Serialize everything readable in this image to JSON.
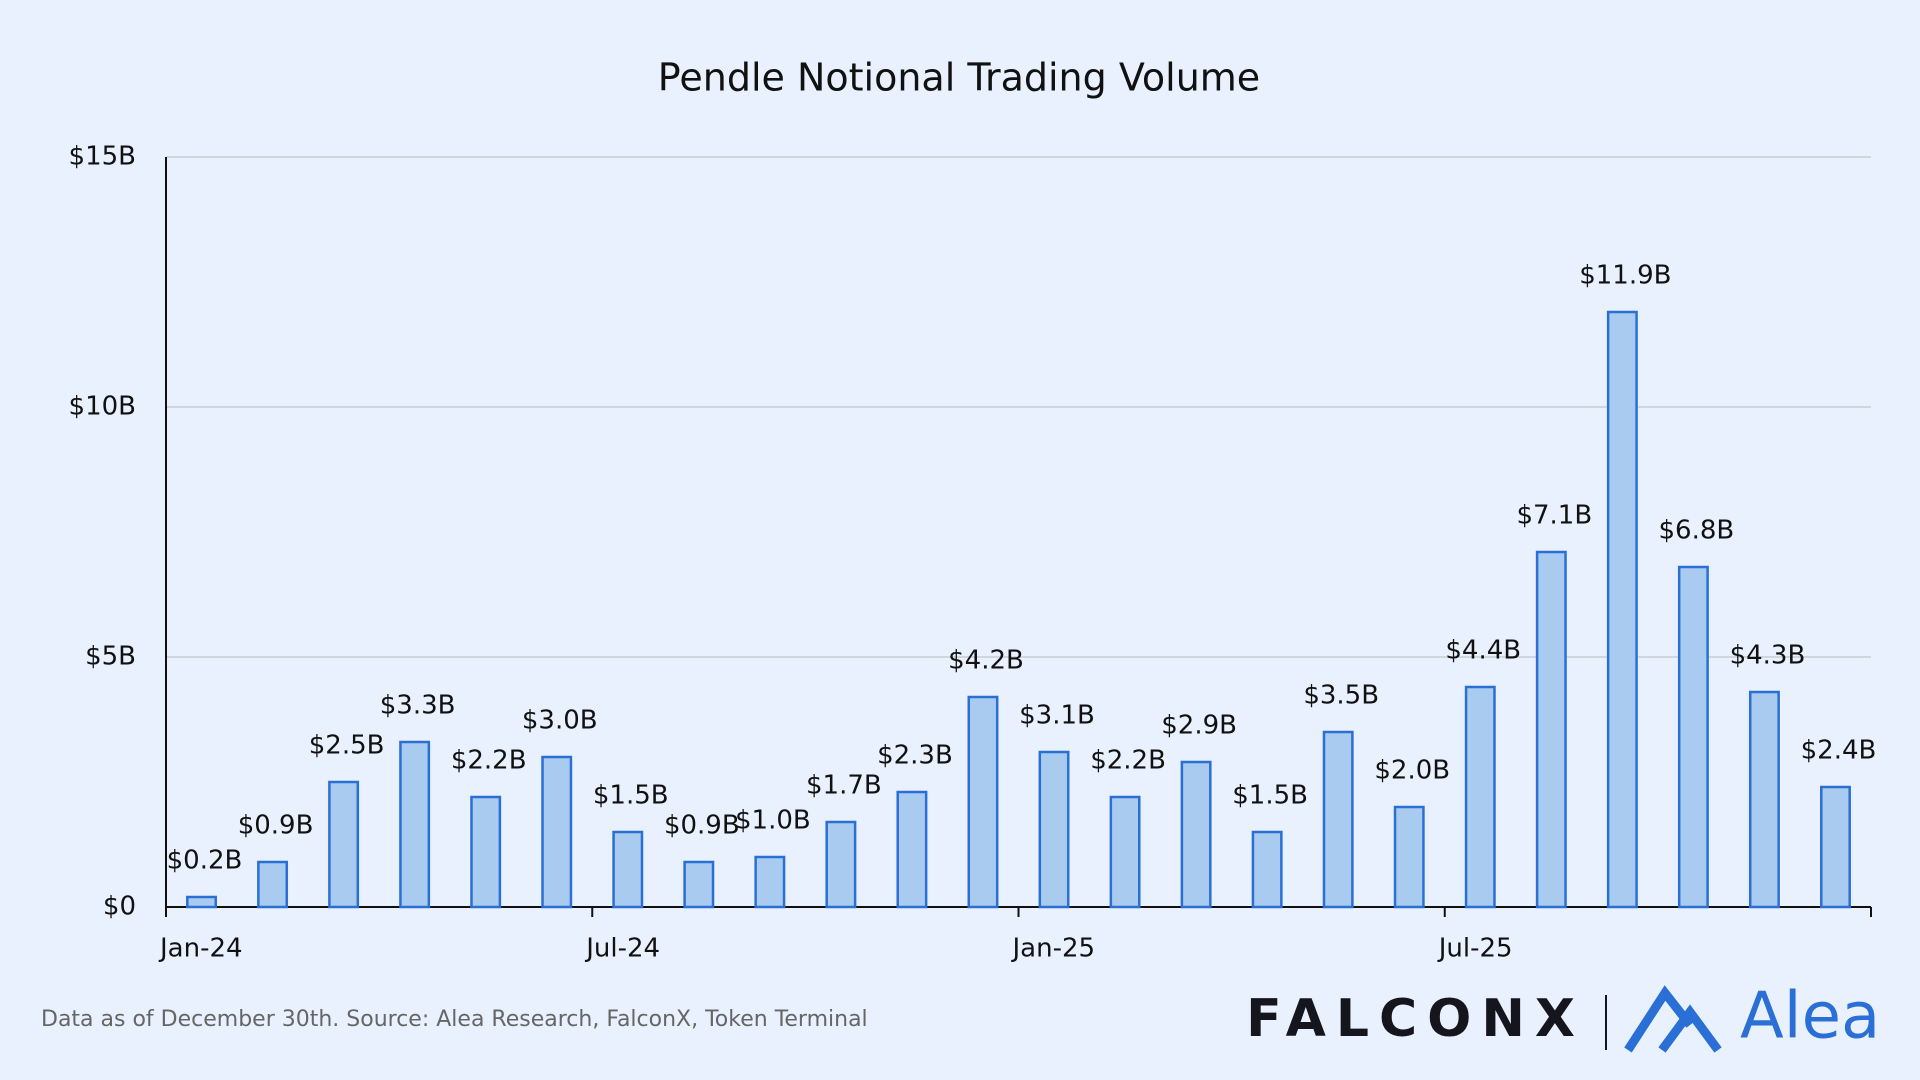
{
  "chart_data": {
    "type": "bar",
    "title": "Pendle Notional Trading Volume",
    "categories": [
      "Jan-24",
      null,
      null,
      null,
      null,
      null,
      "Jul-24",
      null,
      null,
      null,
      null,
      null,
      "Jan-25",
      null,
      null,
      null,
      null,
      null,
      "Jul-25",
      null,
      null,
      null,
      null,
      null
    ],
    "values": [
      0.2,
      0.9,
      2.5,
      3.3,
      2.2,
      3.0,
      1.5,
      0.9,
      1.0,
      1.7,
      2.3,
      4.2,
      3.1,
      2.2,
      2.9,
      1.5,
      3.5,
      2.0,
      4.4,
      7.1,
      11.9,
      6.8,
      4.3,
      2.4
    ],
    "value_labels": [
      "$0.2B",
      "$0.9B",
      "$2.5B",
      "$3.3B",
      "$2.2B",
      "$3.0B",
      "$1.5B",
      "$0.9B",
      "$1.0B",
      "$1.7B",
      "$2.3B",
      "$4.2B",
      "$3.1B",
      "$2.2B",
      "$2.9B",
      "$1.5B",
      "$3.5B",
      "$2.0B",
      "$4.4B",
      "$7.1B",
      "$11.9B",
      "$6.8B",
      "$4.3B",
      "$2.4B"
    ],
    "color": "#a9cbef",
    "edge_color": "#2a6fd5",
    "ylim": [
      0,
      15
    ],
    "yticks": [
      {
        "value": 0,
        "label": "$0"
      },
      {
        "value": 5,
        "label": "$5B"
      },
      {
        "value": 10,
        "label": "$10B"
      },
      {
        "value": 15,
        "label": "$15B"
      }
    ],
    "grid": true,
    "source": "Data as of December 30th. Source: Alea Research, FalconX, Token Terminal"
  },
  "logos": {
    "left": "FALCONX",
    "right": "Alea"
  }
}
